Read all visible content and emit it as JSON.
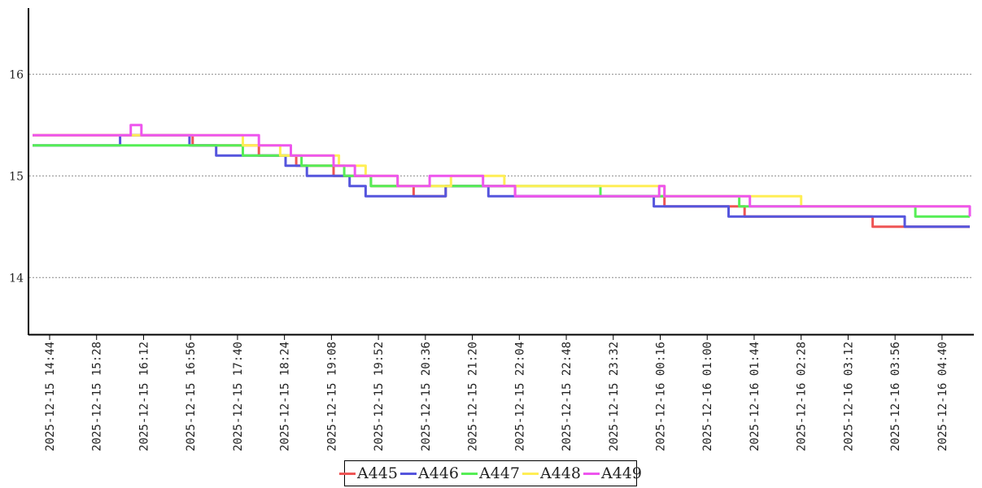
{
  "chart_data": {
    "type": "line",
    "grid": "horizontal dotted",
    "legend_position": "bottom-center",
    "ylim": [
      13.45,
      16.65
    ],
    "y_ticks": [
      "14",
      "15",
      "16"
    ],
    "x_tick_labels": [
      "2025-12-15  14:44",
      "2025-12-15  15:28",
      "2025-12-15  16:12",
      "2025-12-15  16:56",
      "2025-12-15  17:40",
      "2025-12-15  18:24",
      "2025-12-15  19:08",
      "2025-12-15  19:52",
      "2025-12-15  20:36",
      "2025-12-15  21:20",
      "2025-12-15  22:04",
      "2025-12-15  22:48",
      "2025-12-15  23:32",
      "2025-12-16  00:16",
      "2025-12-16  01:00",
      "2025-12-16  01:44",
      "2025-12-16  02:28",
      "2025-12-16  03:12",
      "2025-12-16  03:56",
      "2025-12-16  04:40"
    ],
    "x_range": [
      "2025-12-15 14:28",
      "2025-12-16 05:06"
    ],
    "series": [
      {
        "name": "A445",
        "color": "#ee5555",
        "points": [
          [
            "2025-12-15 14:28",
            15.4
          ],
          [
            "2025-12-15 15:55",
            15.4
          ],
          [
            "2025-12-15 16:58",
            15.3
          ],
          [
            "2025-12-15 18:00",
            15.2
          ],
          [
            "2025-12-15 18:35",
            15.1
          ],
          [
            "2025-12-15 19:10",
            15.0
          ],
          [
            "2025-12-15 19:45",
            14.9
          ],
          [
            "2025-12-15 20:25",
            14.8
          ],
          [
            "2025-12-15 20:55",
            14.9
          ],
          [
            "2025-12-15 22:00",
            14.8
          ],
          [
            "2025-12-15 23:30",
            14.8
          ],
          [
            "2025-12-16 00:20",
            14.7
          ],
          [
            "2025-12-16 01:00",
            14.7
          ],
          [
            "2025-12-16 01:35",
            14.6
          ],
          [
            "2025-12-16 03:35",
            14.5
          ],
          [
            "2025-12-16 05:06",
            14.5
          ]
        ]
      },
      {
        "name": "A446",
        "color": "#5555dd",
        "points": [
          [
            "2025-12-15 14:28",
            15.3
          ],
          [
            "2025-12-15 15:28",
            15.3
          ],
          [
            "2025-12-15 15:50",
            15.4
          ],
          [
            "2025-12-15 16:55",
            15.3
          ],
          [
            "2025-12-15 17:20",
            15.2
          ],
          [
            "2025-12-15 18:05",
            15.2
          ],
          [
            "2025-12-15 18:25",
            15.1
          ],
          [
            "2025-12-15 18:45",
            15.0
          ],
          [
            "2025-12-15 19:25",
            14.9
          ],
          [
            "2025-12-15 19:40",
            14.8
          ],
          [
            "2025-12-15 20:55",
            14.9
          ],
          [
            "2025-12-15 21:35",
            14.8
          ],
          [
            "2025-12-15 22:10",
            14.8
          ],
          [
            "2025-12-15 23:35",
            14.8
          ],
          [
            "2025-12-16 00:10",
            14.7
          ],
          [
            "2025-12-16 01:20",
            14.6
          ],
          [
            "2025-12-16 01:45",
            14.6
          ],
          [
            "2025-12-16 03:56",
            14.6
          ],
          [
            "2025-12-16 04:05",
            14.5
          ],
          [
            "2025-12-16 05:06",
            14.5
          ]
        ]
      },
      {
        "name": "A447",
        "color": "#55ee55",
        "points": [
          [
            "2025-12-15 14:28",
            15.3
          ],
          [
            "2025-12-15 16:56",
            15.3
          ],
          [
            "2025-12-15 17:45",
            15.2
          ],
          [
            "2025-12-15 18:40",
            15.1
          ],
          [
            "2025-12-15 19:20",
            15.0
          ],
          [
            "2025-12-15 19:45",
            14.9
          ],
          [
            "2025-12-15 20:36",
            14.9
          ],
          [
            "2025-12-15 22:00",
            14.9
          ],
          [
            "2025-12-15 23:20",
            14.8
          ],
          [
            "2025-12-16 00:20",
            14.8
          ],
          [
            "2025-12-16 01:10",
            14.8
          ],
          [
            "2025-12-16 01:30",
            14.7
          ],
          [
            "2025-12-16 03:56",
            14.7
          ],
          [
            "2025-12-16 04:15",
            14.6
          ],
          [
            "2025-12-16 05:06",
            14.6
          ]
        ]
      },
      {
        "name": "A448",
        "color": "#ffee55",
        "points": [
          [
            "2025-12-15 14:28",
            15.4
          ],
          [
            "2025-12-15 16:56",
            15.4
          ],
          [
            "2025-12-15 17:45",
            15.3
          ],
          [
            "2025-12-15 18:20",
            15.2
          ],
          [
            "2025-12-15 19:15",
            15.1
          ],
          [
            "2025-12-15 19:40",
            15.0
          ],
          [
            "2025-12-15 20:10",
            14.9
          ],
          [
            "2025-12-15 21:00",
            15.0
          ],
          [
            "2025-12-15 21:50",
            14.9
          ],
          [
            "2025-12-15 23:30",
            14.9
          ],
          [
            "2025-12-16 00:10",
            14.9
          ],
          [
            "2025-12-16 00:20",
            14.8
          ],
          [
            "2025-12-16 01:10",
            14.8
          ],
          [
            "2025-12-16 01:45",
            14.8
          ],
          [
            "2025-12-16 02:28",
            14.7
          ],
          [
            "2025-12-16 05:06",
            14.7
          ]
        ]
      },
      {
        "name": "A449",
        "color": "#ee55ee",
        "points": [
          [
            "2025-12-15 14:28",
            15.4
          ],
          [
            "2025-12-15 15:55",
            15.4
          ],
          [
            "2025-12-15 16:00",
            15.5
          ],
          [
            "2025-12-15 16:10",
            15.4
          ],
          [
            "2025-12-15 17:40",
            15.4
          ],
          [
            "2025-12-15 18:00",
            15.3
          ],
          [
            "2025-12-15 18:30",
            15.2
          ],
          [
            "2025-12-15 19:10",
            15.1
          ],
          [
            "2025-12-15 19:30",
            15.0
          ],
          [
            "2025-12-15 20:10",
            14.9
          ],
          [
            "2025-12-15 20:40",
            15.0
          ],
          [
            "2025-12-15 21:30",
            14.9
          ],
          [
            "2025-12-15 22:00",
            14.8
          ],
          [
            "2025-12-16 00:15",
            14.9
          ],
          [
            "2025-12-16 00:20",
            14.8
          ],
          [
            "2025-12-16 01:30",
            14.8
          ],
          [
            "2025-12-16 01:40",
            14.7
          ],
          [
            "2025-12-16 04:00",
            14.7
          ],
          [
            "2025-12-16 04:20",
            14.7
          ],
          [
            "2025-12-16 05:06",
            14.6
          ]
        ]
      }
    ]
  }
}
